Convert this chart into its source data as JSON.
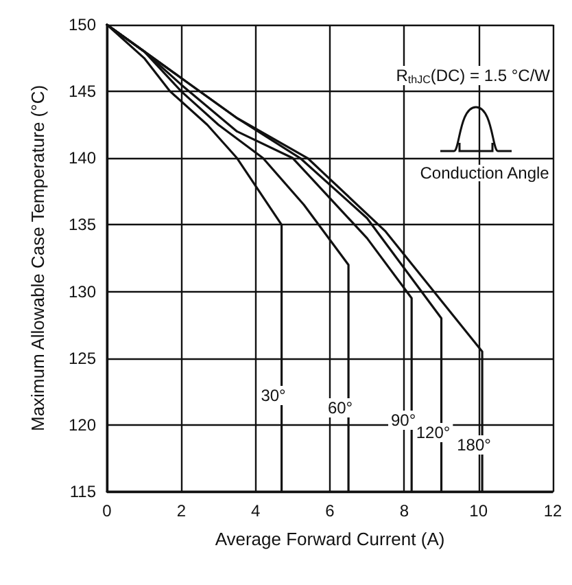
{
  "chart_data": {
    "type": "line",
    "xlabel": "Average Forward Current (A)",
    "ylabel": "Maximum Allowable Case Temperature (°C)",
    "xlim": [
      0,
      12
    ],
    "xticks": [
      0,
      2,
      4,
      6,
      8,
      10,
      12
    ],
    "ylim": [
      115,
      150
    ],
    "yticks": [
      115,
      120,
      125,
      130,
      135,
      140,
      145,
      150
    ],
    "grid": true,
    "legend": false,
    "marker": "none",
    "line_style": "solid",
    "annotations": [
      "R$_{thJC}$(DC) = 1.5 °C/W",
      "Conduction Angle"
    ],
    "series": [
      {
        "name": "30°",
        "color": "#111111",
        "x": [
          0,
          1,
          1.7,
          2.7,
          3.5,
          4.1,
          4.7,
          4.7
        ],
        "values": [
          150,
          147.5,
          145,
          142.5,
          140,
          137.5,
          135,
          115
        ]
      },
      {
        "name": "60°",
        "color": "#111111",
        "x": [
          0,
          1,
          2,
          3,
          4.2,
          5.3,
          6.5,
          6.5
        ],
        "values": [
          150,
          148,
          145,
          142.5,
          140,
          136.5,
          132,
          115
        ]
      },
      {
        "name": "90°",
        "color": "#111111",
        "x": [
          0,
          1,
          2,
          3.5,
          5,
          6,
          7,
          8.2,
          8.2
        ],
        "values": [
          150,
          148,
          145.5,
          142,
          140,
          137,
          134,
          129.5,
          115
        ]
      },
      {
        "name": "120°",
        "color": "#111111",
        "x": [
          0,
          1,
          2,
          3.5,
          5.2,
          7,
          9,
          9
        ],
        "values": [
          150,
          148,
          146,
          143,
          140,
          135.5,
          128,
          115
        ]
      },
      {
        "name": "180°",
        "color": "#111111",
        "x": [
          0,
          1,
          2,
          3.5,
          5.4,
          7.5,
          10.1,
          10.1
        ],
        "values": [
          150,
          148,
          146,
          143,
          140,
          134.5,
          125.5,
          115
        ]
      }
    ]
  }
}
